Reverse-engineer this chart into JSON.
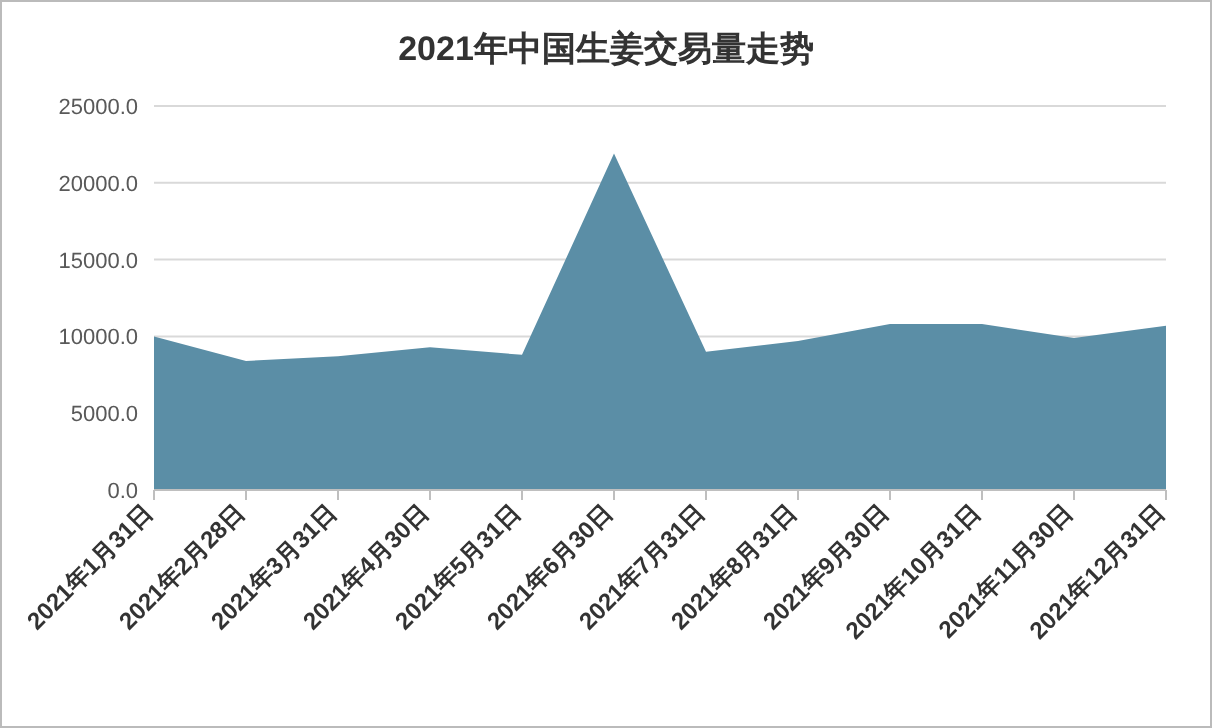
{
  "chart_data": {
    "type": "area",
    "title": "2021年中国生姜交易量走势",
    "categories": [
      "2021年1月31日",
      "2021年2月28日",
      "2021年3月31日",
      "2021年4月30日",
      "2021年5月31日",
      "2021年6月30日",
      "2021年7月31日",
      "2021年8月31日",
      "2021年9月30日",
      "2021年10月31日",
      "2021年11月30日",
      "2021年12月31日"
    ],
    "values": [
      10000,
      8400,
      8700,
      9300,
      8800,
      21900,
      9000,
      9700,
      10800,
      10800,
      9900,
      10700
    ],
    "color": "#5b8ea6",
    "ylim": [
      0,
      25000
    ],
    "yticks": [
      {
        "value": 0,
        "label": "0.0"
      },
      {
        "value": 5000,
        "label": "5000.0"
      },
      {
        "value": 10000,
        "label": "10000.0"
      },
      {
        "value": 15000,
        "label": "15000.0"
      },
      {
        "value": 20000,
        "label": "20000.0"
      },
      {
        "value": 25000,
        "label": "25000.0"
      }
    ],
    "grid": "y"
  }
}
